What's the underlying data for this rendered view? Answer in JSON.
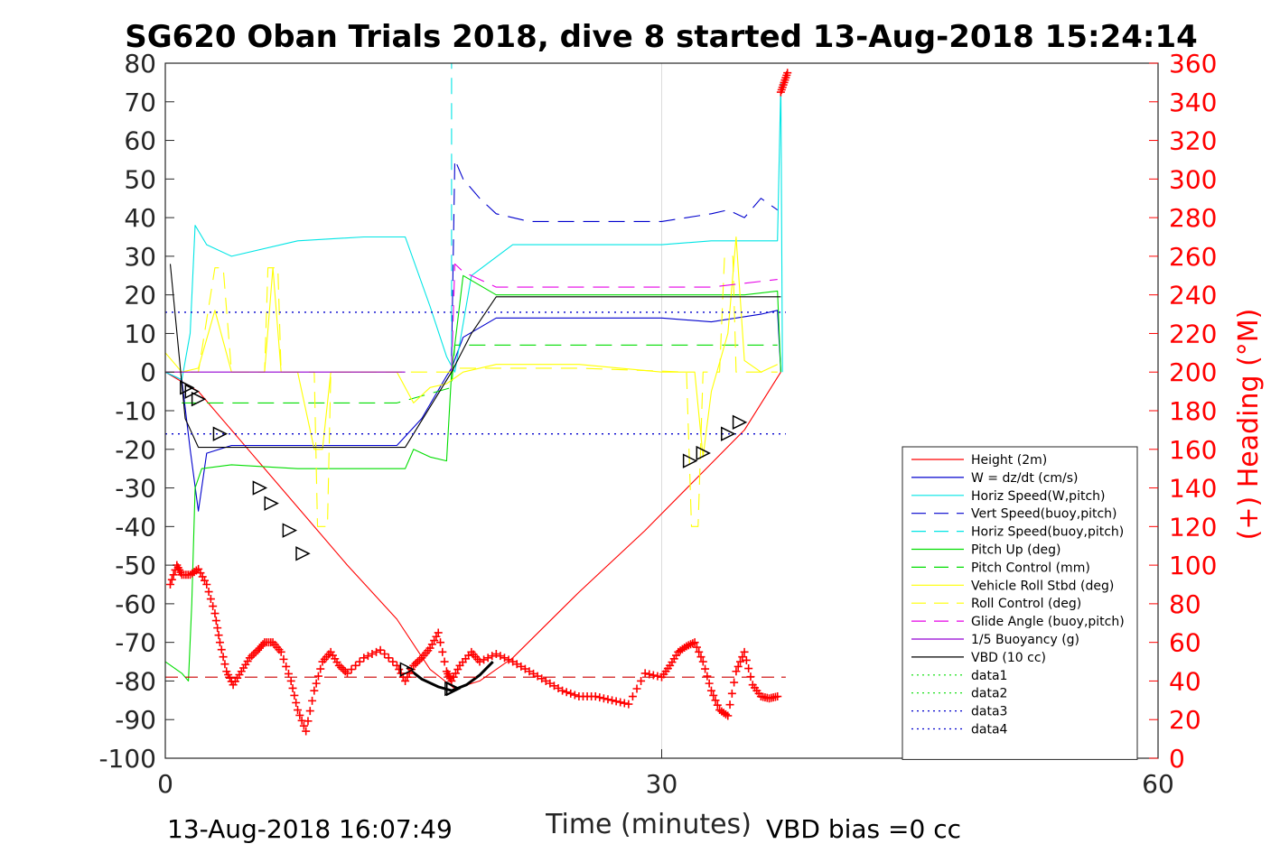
{
  "chart_data": {
    "type": "line",
    "title": "SG620 Oban Trials 2018, dive 8 started 13-Aug-2018 15:24:14",
    "xlabel": "Time (minutes)",
    "ylabel_right": "(+) Heading (°M)",
    "xlim": [
      0,
      60
    ],
    "ylim": [
      -100,
      80
    ],
    "ylim_right": [
      0,
      360
    ],
    "xticks": [
      "0",
      "30",
      "60"
    ],
    "yticks": [
      "80",
      "70",
      "60",
      "50",
      "40",
      "30",
      "20",
      "10",
      "0",
      "-10",
      "-20",
      "-30",
      "-40",
      "-50",
      "-60",
      "-70",
      "-80",
      "-90",
      "-100"
    ],
    "yticks_right": [
      "360",
      "340",
      "320",
      "300",
      "280",
      "260",
      "240",
      "220",
      "200",
      "180",
      "160",
      "140",
      "120",
      "100",
      "80",
      "60",
      "40",
      "20",
      "0"
    ],
    "footer_left": "13-Aug-2018 16:07:49",
    "footer_right": "VBD bias =0 cc",
    "grid": "x only",
    "legend_placement": "lower-right",
    "colors": {
      "axis": "#262626",
      "heading": "#ff0000",
      "grid": "#dcdcdc"
    },
    "series": [
      {
        "name": "Height (2m)",
        "color": "#ff0000",
        "style": "solid",
        "x": [
          0,
          2,
          5,
          8,
          11,
          14,
          16,
          17.5,
          19,
          21,
          25,
          29,
          32,
          35,
          37.2
        ],
        "y": [
          0,
          -5,
          -20,
          -35,
          -50,
          -64,
          -77,
          -82,
          -80,
          -74,
          -57,
          -41,
          -28,
          -15,
          0
        ]
      },
      {
        "name": "W = dz/dt (cm/s)",
        "color": "#0000cd",
        "style": "solid",
        "x": [
          0,
          1,
          1.5,
          2,
          2.5,
          4,
          8,
          12,
          14,
          15.5,
          17,
          17.3,
          18,
          20,
          25,
          30,
          33,
          36,
          37,
          37.2
        ],
        "y": [
          0,
          -2,
          -20,
          -36,
          -21,
          -19,
          -19,
          -19,
          -19,
          -12,
          -1,
          1,
          9,
          14,
          14,
          14,
          13,
          15,
          16,
          0
        ]
      },
      {
        "name": "Horiz Speed(W,pitch)",
        "color": "#00e5e5",
        "style": "solid",
        "x": [
          0,
          1,
          1.5,
          1.8,
          2.5,
          4,
          8,
          12,
          14.5,
          16,
          17,
          17.5,
          18.5,
          21,
          25,
          30,
          33,
          35,
          37,
          37.2,
          37.3
        ],
        "y": [
          0,
          -2,
          10,
          38,
          33,
          30,
          34,
          35,
          35,
          17,
          4,
          0,
          25,
          33,
          33,
          33,
          34,
          34,
          34,
          75,
          0
        ]
      },
      {
        "name": "Vert Speed(buoy,pitch)",
        "color": "#0000cd",
        "style": "dash",
        "x": [
          17.3,
          17.5,
          18,
          19,
          20,
          22,
          25,
          30,
          33,
          34,
          35,
          36,
          37
        ],
        "y": [
          4,
          55,
          50,
          45,
          41,
          39,
          39,
          39,
          41,
          42,
          40,
          45,
          42
        ]
      },
      {
        "name": "Horiz Speed(buoy,pitch)",
        "color": "#00e5e5",
        "style": "dash",
        "x": [
          17.3,
          17.3
        ],
        "y": [
          0,
          80
        ]
      },
      {
        "name": "Pitch Up (deg)",
        "color": "#00dd00",
        "style": "solid",
        "x": [
          0,
          1,
          1.4,
          1.6,
          1.8,
          2.2,
          4,
          8,
          12,
          14.5,
          15,
          16,
          17,
          17.3,
          18,
          20,
          25,
          30,
          35,
          37,
          37.2
        ],
        "y": [
          -75,
          -78,
          -80,
          -60,
          -30,
          -25,
          -24,
          -25,
          -25,
          -25,
          -20,
          -22,
          -23,
          0,
          25,
          20,
          20,
          20,
          20,
          21,
          0
        ]
      },
      {
        "name": "Pitch Control (mm)",
        "color": "#00dd00",
        "style": "dash",
        "x": [
          1,
          2,
          4,
          8,
          14,
          17.3,
          17.5,
          20,
          30,
          37
        ],
        "y": [
          -8,
          -8,
          -8,
          -8,
          -8,
          -4,
          7,
          7,
          7,
          7
        ]
      },
      {
        "name": "Vehicle Roll Stbd (deg)",
        "color": "#ffff00",
        "style": "solid",
        "x": [
          0,
          1,
          2,
          3,
          4,
          5,
          6,
          6.5,
          7,
          8,
          9,
          9.5,
          10,
          12,
          14,
          15,
          16,
          17,
          18,
          20,
          25,
          30,
          32,
          32.5,
          33,
          34,
          34.5,
          35,
          36,
          37
        ],
        "y": [
          5,
          0,
          1,
          16,
          0,
          0,
          0,
          27,
          0,
          0,
          -20,
          -20,
          0,
          0,
          0,
          -8,
          -4,
          -3,
          0,
          2,
          2,
          0,
          0,
          -22,
          -5,
          10,
          35,
          3,
          0,
          2
        ]
      },
      {
        "name": "Roll Control (deg)",
        "color": "#ffff00",
        "style": "dash",
        "x": [
          0,
          1,
          2,
          3,
          3.5,
          4,
          6,
          6.2,
          6.8,
          7,
          9,
          9.2,
          9.8,
          10,
          12,
          14,
          15,
          17.3,
          17.5,
          25,
          31.5,
          31.8,
          32.2,
          32.5,
          33.5,
          33.8,
          34.3,
          34.5,
          36,
          37
        ],
        "y": [
          0,
          0,
          0,
          27,
          27,
          0,
          0,
          27,
          27,
          0,
          0,
          -40,
          -40,
          0,
          0,
          0,
          0,
          0,
          1,
          1,
          0,
          -40,
          -40,
          0,
          0,
          30,
          30,
          0,
          0,
          0
        ]
      },
      {
        "name": "Glide Angle (buoy,pitch)",
        "color": "#e600e6",
        "style": "dash",
        "x": [
          17.3,
          17.5,
          18,
          20,
          25,
          30,
          33,
          35,
          37
        ],
        "y": [
          0,
          28,
          26,
          22,
          22,
          22,
          22,
          23,
          24
        ]
      },
      {
        "name": "1/5 Buoyancy (g)",
        "color": "#9400d3",
        "style": "solid",
        "x": [
          0,
          14.5
        ],
        "y": [
          0,
          0
        ]
      },
      {
        "name": "VBD (10 cc)",
        "color": "#000000",
        "style": "solid",
        "x": [
          0.3,
          1.2,
          2,
          4,
          8,
          14.5,
          17.3,
          18.5,
          20,
          30,
          37.2
        ],
        "y": [
          28,
          -12,
          -19.5,
          -19.5,
          -19.5,
          -19.5,
          0,
          10,
          19.5,
          19.5,
          19.5
        ]
      },
      {
        "name": "data1",
        "color": "#00dd00",
        "style": "dot",
        "x": [],
        "y": []
      },
      {
        "name": "data2",
        "color": "#00dd00",
        "style": "dot",
        "x": [],
        "y": []
      },
      {
        "name": "data3",
        "color": "#0000cd",
        "style": "dot",
        "x": [
          0,
          37.5
        ],
        "y": [
          15.5,
          15.5
        ]
      },
      {
        "name": "data4",
        "color": "#0000cd",
        "style": "dot",
        "x": [
          0,
          37.5
        ],
        "y": [
          -16,
          -16
        ]
      }
    ],
    "heading_reference": {
      "color": "#cc0000",
      "style": "dash",
      "heading": 42,
      "x": [
        0,
        37.5
      ]
    },
    "heading_points": {
      "x": [
        0.3,
        0.7,
        1.0,
        1.5,
        2.0,
        2.5,
        3.0,
        3.3,
        3.7,
        4.1,
        4.6,
        5.1,
        5.6,
        6.0,
        6.5,
        7.0,
        7.6,
        8.0,
        8.5,
        9.0,
        9.5,
        10.0,
        10.5,
        11.0,
        12.0,
        13.0,
        14.0,
        14.5,
        15.0,
        15.5,
        16.0,
        16.5,
        17.0,
        17.3,
        17.8,
        18.5,
        19.0,
        20.0,
        21.0,
        22.0,
        23.0,
        24.0,
        25.0,
        26.0,
        27.0,
        28.0,
        29.0,
        30.0,
        30.5,
        31.0,
        31.5,
        32.0,
        32.5,
        33.0,
        33.5,
        34.0,
        34.5,
        35.0,
        35.5,
        36.0,
        36.5,
        37.0,
        37.2,
        37.4,
        37.6
      ],
      "heading": [
        90,
        100,
        95,
        95,
        98,
        90,
        75,
        60,
        45,
        38,
        45,
        52,
        56,
        60,
        60,
        55,
        40,
        25,
        14,
        35,
        50,
        55,
        48,
        44,
        52,
        56,
        48,
        40,
        48,
        52,
        57,
        65,
        45,
        40,
        48,
        55,
        50,
        54,
        50,
        45,
        40,
        35,
        32,
        32,
        30,
        28,
        44,
        42,
        48,
        55,
        58,
        60,
        50,
        35,
        25,
        22,
        45,
        55,
        38,
        32,
        31,
        32,
        345,
        350,
        355
      ]
    },
    "markers": {
      "x": [
        1.3,
        1.6,
        2.0,
        3.3,
        5.7,
        6.4,
        7.5,
        8.3,
        14.6,
        17.3,
        17.4,
        31.7,
        32.5,
        34.0,
        34.7
      ],
      "y": [
        -4,
        -5,
        -7,
        -16,
        -30,
        -34,
        -41,
        -47,
        -77,
        -82,
        -82,
        -23,
        -21,
        -16,
        -13
      ]
    },
    "vbd_swing": {
      "x": [
        14.6,
        15.5,
        16.5,
        17.3,
        18.2,
        19.0,
        19.8
      ],
      "y": [
        -76.5,
        -79.5,
        -81.5,
        -82.5,
        -81,
        -78.5,
        -75
      ]
    }
  }
}
